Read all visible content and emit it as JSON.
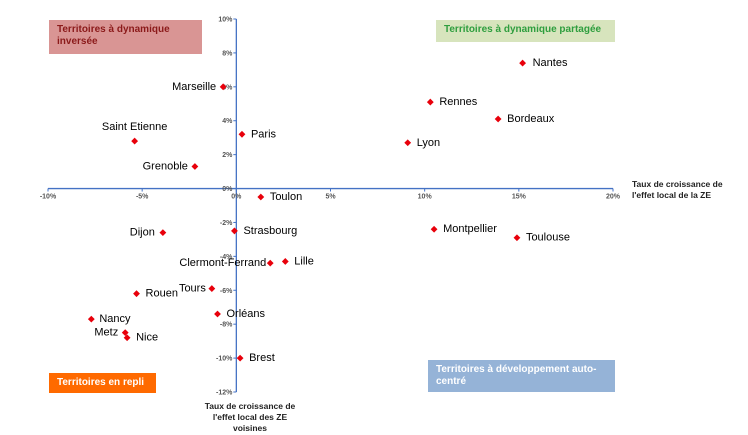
{
  "chart_data": {
    "type": "scatter",
    "xlim": [
      -10,
      20
    ],
    "ylim": [
      -12,
      10
    ],
    "x_ticks": [
      -10,
      -5,
      0,
      5,
      10,
      15,
      20
    ],
    "y_ticks": [
      10,
      8,
      6,
      4,
      2,
      0,
      -2,
      -4,
      -6,
      -8,
      -10,
      -12
    ],
    "x_tick_labels": [
      "-10%",
      "-5%",
      "0%",
      "5%",
      "10%",
      "15%",
      "20%"
    ],
    "y_tick_labels": [
      "10%",
      "8%",
      "6%",
      "4%",
      "2%",
      "0%",
      "-2%",
      "-4%",
      "-6%",
      "-8%",
      "-10%",
      "-12%"
    ],
    "xlabel": "Taux de croissance de\nl'effet local de la ZE",
    "ylabel": "Taux de croissance de\nl'effet local des ZE\nvoisines",
    "marker_color": "#e8000b",
    "axis_color": "#4472c4",
    "points": [
      {
        "label": "Nantes",
        "x": 15.2,
        "y": 7.4
      },
      {
        "label": "Rennes",
        "x": 10.3,
        "y": 5.1
      },
      {
        "label": "Bordeaux",
        "x": 13.9,
        "y": 4.1
      },
      {
        "label": "Lyon",
        "x": 9.1,
        "y": 2.7
      },
      {
        "label": "Marseille",
        "x": -0.7,
        "y": 6.0
      },
      {
        "label": "Paris",
        "x": 0.3,
        "y": 3.2
      },
      {
        "label": "Saint Etienne",
        "x": -5.4,
        "y": 2.8
      },
      {
        "label": "Grenoble",
        "x": -2.2,
        "y": 1.3
      },
      {
        "label": "Toulon",
        "x": 1.3,
        "y": -0.5
      },
      {
        "label": "Strasbourg",
        "x": -0.1,
        "y": -2.5
      },
      {
        "label": "Dijon",
        "x": -3.9,
        "y": -2.6
      },
      {
        "label": "Montpellier",
        "x": 10.5,
        "y": -2.4
      },
      {
        "label": "Toulouse",
        "x": 14.9,
        "y": -2.9
      },
      {
        "label": "Clermont-Ferrand",
        "x": 1.8,
        "y": -4.4
      },
      {
        "label": "Lille",
        "x": 2.6,
        "y": -4.3
      },
      {
        "label": "Tours",
        "x": -1.3,
        "y": -5.9
      },
      {
        "label": "Rouen",
        "x": -5.3,
        "y": -6.2
      },
      {
        "label": "Orléans",
        "x": -1.0,
        "y": -7.4
      },
      {
        "label": "Nancy",
        "x": -7.7,
        "y": -7.7
      },
      {
        "label": "Metz",
        "x": -5.9,
        "y": -8.5
      },
      {
        "label": "Nice",
        "x": -5.8,
        "y": -8.8
      },
      {
        "label": "Brest",
        "x": 0.2,
        "y": -10.0
      }
    ]
  },
  "quadrants": {
    "top_left": {
      "label": "Territoires à dynamique\ninversée",
      "bg": "#d99594",
      "color": "#8b1a1a"
    },
    "top_right": {
      "label": "Territoires à dynamique partagée",
      "bg": "#d7e4bd",
      "color": "#2e9e3e"
    },
    "bottom_left": {
      "label": "Territoires en repli",
      "bg": "#ff6a00",
      "color": "#ffffff"
    },
    "bottom_right": {
      "label": "Territoires à développement auto-\ncentré",
      "bg": "#95b3d7",
      "color": "#ffffff"
    }
  }
}
